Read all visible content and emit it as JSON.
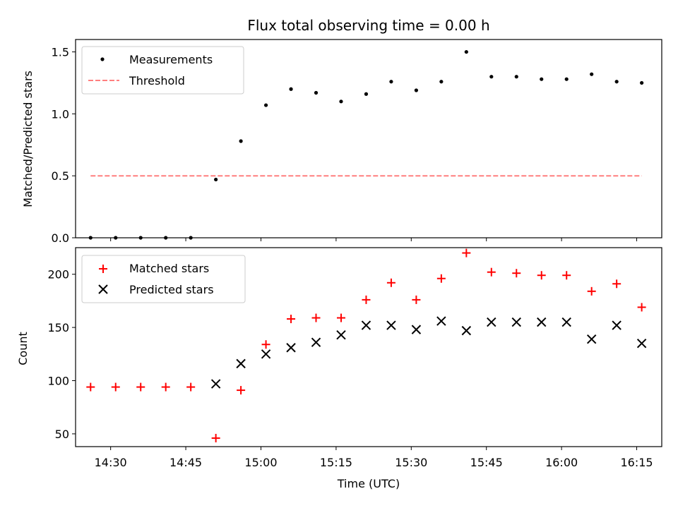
{
  "chart_data": {
    "type": "scatter",
    "title": "Flux total observing time = 0.00 h",
    "xlabel": "Time (UTC)",
    "x_ticks": [
      "14:30",
      "14:45",
      "15:00",
      "15:15",
      "15:30",
      "15:45",
      "16:00",
      "16:15"
    ],
    "x_range": [
      "14:23",
      "16:20"
    ],
    "times": [
      "14:26",
      "14:31",
      "14:36",
      "14:41",
      "14:46",
      "14:51",
      "14:56",
      "15:01",
      "15:06",
      "15:11",
      "15:16",
      "15:21",
      "15:26",
      "15:31",
      "15:36",
      "15:41",
      "15:46",
      "15:51",
      "15:56",
      "16:01",
      "16:06",
      "16:11",
      "16:16"
    ],
    "panels": [
      {
        "id": "ratio",
        "ylabel": "Matched/Predicted stars",
        "ylim": [
          0.0,
          1.6
        ],
        "y_ticks": [
          "0.0",
          "0.5",
          "1.0",
          "1.5"
        ],
        "legend_position": "top-left",
        "series": [
          {
            "name": "Measurements",
            "type": "scatter",
            "marker": "dot",
            "color": "#000000",
            "values": [
              0.0,
              0.0,
              0.0,
              0.0,
              0.0,
              0.47,
              0.78,
              1.07,
              1.2,
              1.17,
              1.1,
              1.16,
              1.26,
              1.19,
              1.26,
              1.5,
              1.3,
              1.3,
              1.28,
              1.28,
              1.32,
              1.26,
              1.25
            ]
          },
          {
            "name": "Threshold",
            "type": "line",
            "style": "dashed",
            "color": "#ff7f7f",
            "value": 0.5
          }
        ]
      },
      {
        "id": "counts",
        "ylabel": "Count",
        "ylim": [
          38,
          225
        ],
        "y_ticks": [
          "50",
          "100",
          "150",
          "200"
        ],
        "legend_position": "top-left",
        "series": [
          {
            "name": "Matched stars",
            "type": "scatter",
            "marker": "plus",
            "color": "#ff0000",
            "values": [
              94,
              94,
              94,
              94,
              94,
              46,
              91,
              134,
              158,
              159,
              159,
              176,
              192,
              176,
              196,
              220,
              202,
              201,
              199,
              199,
              184,
              191,
              169
            ]
          },
          {
            "name": "Predicted stars",
            "type": "scatter",
            "marker": "x",
            "color": "#000000",
            "values": [
              null,
              null,
              null,
              null,
              null,
              97,
              116,
              125,
              131,
              136,
              143,
              152,
              152,
              148,
              156,
              147,
              155,
              155,
              155,
              155,
              139,
              152,
              135
            ]
          }
        ]
      }
    ]
  }
}
